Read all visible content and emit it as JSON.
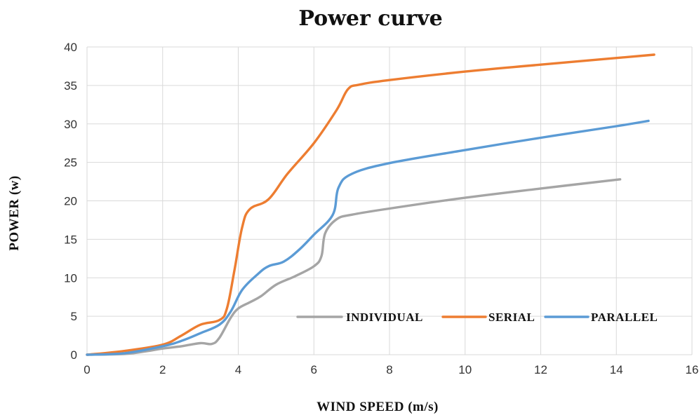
{
  "chart_data": {
    "type": "line",
    "title": "Power curve",
    "xlabel": "WIND SPEED (m/s)",
    "ylabel": "POWER (w)",
    "xlim": [
      0,
      16
    ],
    "ylim": [
      0,
      40
    ],
    "xticks": [
      0,
      2,
      4,
      6,
      8,
      10,
      12,
      14,
      16
    ],
    "yticks": [
      0,
      5,
      10,
      15,
      20,
      25,
      30,
      35,
      40
    ],
    "grid": true,
    "legend_position": "bottom-right",
    "series": [
      {
        "name": "INDIVIDUAL",
        "color": "#a5a5a5",
        "points": [
          [
            0,
            0
          ],
          [
            1,
            0.1
          ],
          [
            1.5,
            0.4
          ],
          [
            2,
            0.8
          ],
          [
            2.5,
            1.1
          ],
          [
            3,
            1.5
          ],
          [
            3.3,
            1.4
          ],
          [
            3.5,
            2.2
          ],
          [
            3.8,
            4.8
          ],
          [
            4,
            6
          ],
          [
            4.3,
            6.8
          ],
          [
            4.6,
            7.6
          ],
          [
            5,
            9.1
          ],
          [
            5.5,
            10.2
          ],
          [
            6,
            11.5
          ],
          [
            6.2,
            12.8
          ],
          [
            6.3,
            15.8
          ],
          [
            6.6,
            17.6
          ],
          [
            7,
            18.2
          ],
          [
            8,
            19
          ],
          [
            10,
            20.4
          ],
          [
            12,
            21.6
          ],
          [
            14.1,
            22.8
          ]
        ]
      },
      {
        "name": "SERIAL",
        "color": "#ed7d31",
        "points": [
          [
            0,
            0
          ],
          [
            1,
            0.5
          ],
          [
            2,
            1.3
          ],
          [
            2.5,
            2.5
          ],
          [
            3,
            3.9
          ],
          [
            3.5,
            4.5
          ],
          [
            3.7,
            6
          ],
          [
            3.9,
            11
          ],
          [
            4.1,
            16.5
          ],
          [
            4.3,
            18.9
          ],
          [
            4.8,
            20.2
          ],
          [
            5.3,
            23.5
          ],
          [
            6,
            27.5
          ],
          [
            6.6,
            31.8
          ],
          [
            6.9,
            34.5
          ],
          [
            7.2,
            35.1
          ],
          [
            8,
            35.7
          ],
          [
            10,
            36.8
          ],
          [
            12,
            37.7
          ],
          [
            15,
            39
          ]
        ]
      },
      {
        "name": "PARALLEL",
        "color": "#5b9bd5",
        "points": [
          [
            0,
            0
          ],
          [
            1,
            0.2
          ],
          [
            2,
            1.1
          ],
          [
            2.5,
            1.8
          ],
          [
            3,
            2.8
          ],
          [
            3.5,
            3.9
          ],
          [
            3.8,
            5.6
          ],
          [
            4.1,
            8.4
          ],
          [
            4.5,
            10.4
          ],
          [
            4.8,
            11.5
          ],
          [
            5.2,
            12.1
          ],
          [
            5.6,
            13.6
          ],
          [
            6,
            15.6
          ],
          [
            6.5,
            18.2
          ],
          [
            6.65,
            21.7
          ],
          [
            7,
            23.5
          ],
          [
            8,
            24.9
          ],
          [
            10,
            26.6
          ],
          [
            12,
            28.2
          ],
          [
            14,
            29.7
          ],
          [
            14.85,
            30.4
          ]
        ]
      }
    ]
  }
}
